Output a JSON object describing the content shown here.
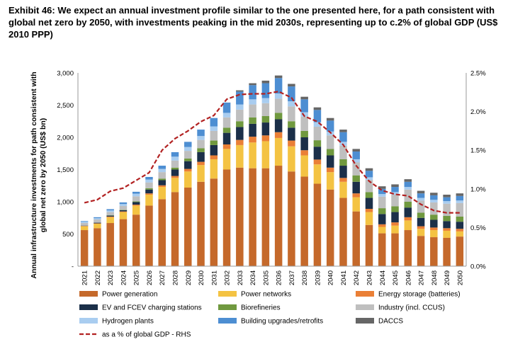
{
  "title": "Exhibit 46: We expect an annual investment profile similar to the one presented here, for a path consistent with global net zero by 2050, with investments peaking in the mid 2030s, representing up to c.2% of global GDP (US$ 2010 PPP)",
  "chart_data": {
    "type": "bar",
    "stacked": true,
    "ylabel": "Annual infrastructure investments for path consistent with global net zero by 2050 (US$ bn)",
    "ylim": [
      0,
      3000
    ],
    "yticks": [
      "-",
      "500",
      "1,000",
      "1,500",
      "2,000",
      "2,500",
      "3,000"
    ],
    "y2lim": [
      0,
      2.5
    ],
    "y2ticks": [
      "0.0%",
      "0.5%",
      "1.0%",
      "1.5%",
      "2.0%",
      "2.5%"
    ],
    "categories": [
      "2021",
      "2022",
      "2023",
      "2024",
      "2025",
      "2026",
      "2027",
      "2028",
      "2029",
      "2030",
      "2031",
      "2032",
      "2033",
      "2034",
      "2035",
      "2036",
      "2037",
      "2038",
      "2039",
      "2040",
      "2041",
      "2042",
      "2043",
      "2044",
      "2045",
      "2046",
      "2047",
      "2048",
      "2049",
      "2050"
    ],
    "series": [
      {
        "name": "Power generation",
        "color": "#c5692b",
        "values": [
          560,
          590,
          670,
          730,
          800,
          940,
          1040,
          1150,
          1220,
          1310,
          1360,
          1500,
          1530,
          1520,
          1520,
          1560,
          1470,
          1390,
          1280,
          1190,
          1060,
          850,
          640,
          510,
          510,
          560,
          470,
          450,
          440,
          460
        ]
      },
      {
        "name": "Power networks",
        "color": "#f4c343",
        "values": [
          60,
          70,
          90,
          110,
          140,
          170,
          190,
          220,
          250,
          260,
          300,
          320,
          350,
          400,
          420,
          430,
          390,
          330,
          300,
          270,
          250,
          220,
          200,
          100,
          120,
          150,
          110,
          110,
          110,
          80
        ]
      },
      {
        "name": "Energy storage (batteries)",
        "color": "#ea7f36",
        "values": [
          5,
          5,
          10,
          10,
          15,
          20,
          25,
          30,
          40,
          50,
          60,
          70,
          80,
          90,
          90,
          90,
          90,
          80,
          75,
          70,
          60,
          60,
          50,
          40,
          50,
          50,
          40,
          40,
          40,
          40
        ]
      },
      {
        "name": "EV and FCEV charging stations",
        "color": "#1b2f49",
        "values": [
          5,
          10,
          15,
          20,
          40,
          60,
          80,
          100,
          120,
          150,
          160,
          180,
          200,
          200,
          200,
          200,
          200,
          200,
          200,
          190,
          190,
          180,
          170,
          160,
          160,
          150,
          130,
          120,
          110,
          110
        ]
      },
      {
        "name": "Biorefineries",
        "color": "#70993f",
        "values": [
          0,
          0,
          5,
          5,
          10,
          20,
          25,
          30,
          40,
          60,
          70,
          80,
          90,
          100,
          100,
          100,
          100,
          100,
          100,
          100,
          100,
          100,
          90,
          90,
          90,
          90,
          80,
          80,
          80,
          80
        ]
      },
      {
        "name": "Industry (incl. CCUS)",
        "color": "#bfbfbf",
        "values": [
          40,
          50,
          50,
          60,
          80,
          90,
          100,
          110,
          120,
          130,
          150,
          160,
          180,
          200,
          200,
          220,
          230,
          220,
          210,
          210,
          210,
          200,
          190,
          180,
          180,
          190,
          190,
          190,
          190,
          210
        ]
      },
      {
        "name": "Hydrogen plants",
        "color": "#a9cdf0",
        "values": [
          20,
          20,
          25,
          30,
          40,
          45,
          50,
          60,
          60,
          60,
          70,
          70,
          80,
          80,
          80,
          80,
          80,
          70,
          70,
          60,
          60,
          50,
          40,
          40,
          40,
          40,
          40,
          40,
          40,
          40
        ]
      },
      {
        "name": "Building upgrades/retrofits",
        "color": "#4d8ed2",
        "values": [
          10,
          15,
          20,
          25,
          30,
          40,
          50,
          70,
          80,
          100,
          130,
          160,
          200,
          220,
          230,
          240,
          230,
          200,
          190,
          170,
          150,
          120,
          100,
          80,
          80,
          80,
          70,
          70,
          60,
          70
        ]
      },
      {
        "name": "DACCS",
        "color": "#666666",
        "values": [
          0,
          0,
          0,
          0,
          0,
          0,
          0,
          0,
          0,
          0,
          0,
          0,
          20,
          30,
          40,
          40,
          40,
          40,
          40,
          40,
          40,
          40,
          40,
          40,
          40,
          40,
          40,
          40,
          40,
          40
        ]
      }
    ],
    "line": {
      "name": "as a % of global GDP - RHS",
      "color": "#b22222",
      "values": [
        0.82,
        0.86,
        0.97,
        1.01,
        1.11,
        1.21,
        1.5,
        1.65,
        1.75,
        1.87,
        1.95,
        2.16,
        2.22,
        2.23,
        2.23,
        2.26,
        2.18,
        1.94,
        1.87,
        1.73,
        1.57,
        1.3,
        1.1,
        0.98,
        0.93,
        0.91,
        0.8,
        0.72,
        0.69,
        0.69
      ]
    },
    "legend": "bottom"
  }
}
